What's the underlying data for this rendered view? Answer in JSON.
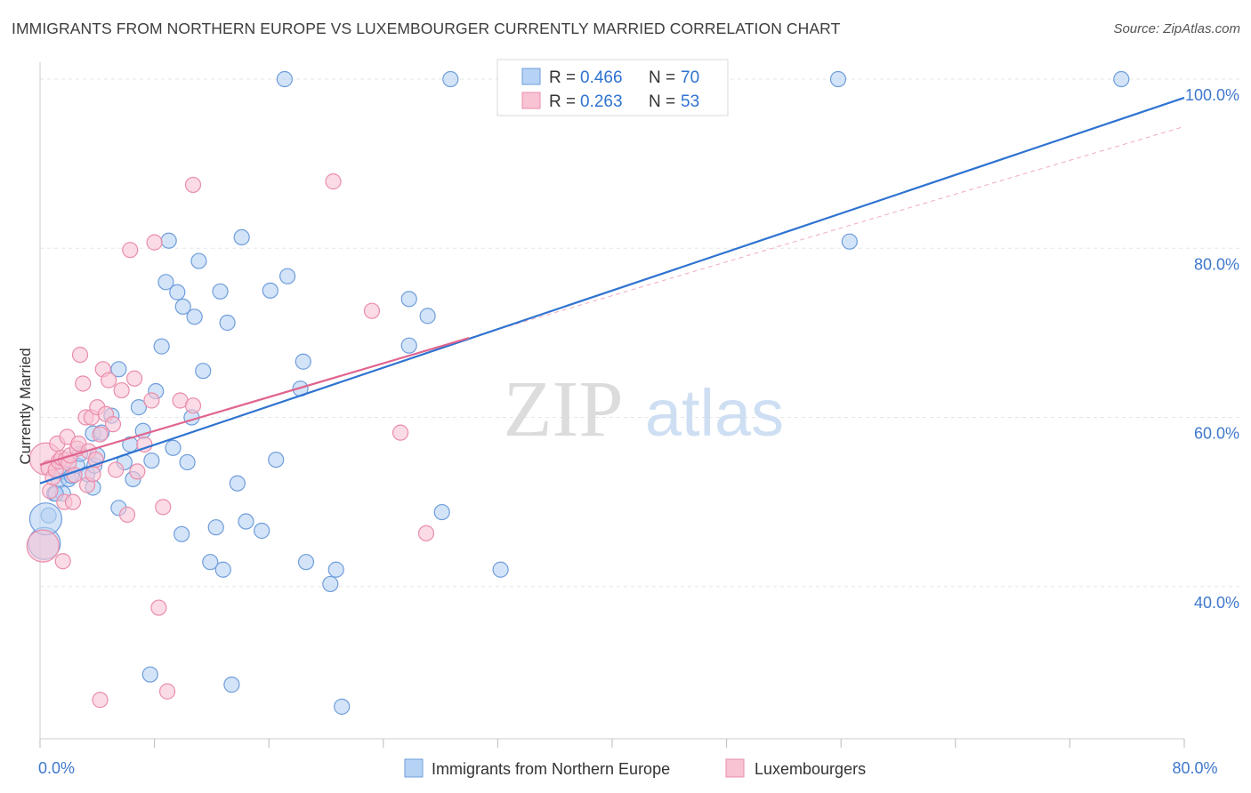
{
  "title": "IMMIGRANTS FROM NORTHERN EUROPE VS LUXEMBOURGER CURRENTLY MARRIED CORRELATION CHART",
  "source": "Source: ZipAtlas.com",
  "watermark": {
    "part1": "ZIP",
    "part2": "atlas"
  },
  "colors": {
    "blue": "#6f9ddb",
    "blue_fill": "#b6d2f4",
    "blue_line": "#2f73d0",
    "pink": "#ea8dab",
    "pink_fill": "#f8c3d3",
    "pink_line": "#e0648e",
    "axis_text": "#3f78cc"
  },
  "legend_box": [
    {
      "r_label": "R =",
      "r_value": "0.466",
      "n_label": "N =",
      "n_value": "70"
    },
    {
      "r_label": "R =",
      "r_value": "0.263",
      "n_label": "N =",
      "n_value": "53"
    }
  ],
  "chart_data": {
    "type": "scatter",
    "title": "IMMIGRANTS FROM NORTHERN EUROPE VS LUXEMBOURGER CURRENTLY MARRIED CORRELATION CHART",
    "xlabel": "",
    "ylabel": "Currently Married",
    "xlim": [
      0,
      80
    ],
    "ylim": [
      22,
      102
    ],
    "x_tick_labels": [
      {
        "value": 0,
        "label": "0.0%"
      },
      {
        "value": 80,
        "label": "80.0%"
      }
    ],
    "y_tick_labels": [
      {
        "value": 40,
        "label": "40.0%"
      },
      {
        "value": 60,
        "label": "60.0%"
      },
      {
        "value": 80,
        "label": "80.0%"
      },
      {
        "value": 100,
        "label": "100.0%"
      }
    ],
    "legend": [
      "Immigrants from Northern Europe",
      "Luxembourgers"
    ],
    "series": [
      {
        "name": "Immigrants from Northern Europe",
        "r": 0.466,
        "n": 70,
        "trend": {
          "x": [
            0,
            80
          ],
          "y": [
            52.2,
            97.8
          ]
        },
        "points": [
          [
            0.3,
            45.1
          ],
          [
            0.6,
            48.4
          ],
          [
            0.4,
            48.0
          ],
          [
            1.0,
            51.0
          ],
          [
            1.3,
            52.5
          ],
          [
            1.6,
            51.0
          ],
          [
            1.5,
            53.6
          ],
          [
            2.0,
            52.7
          ],
          [
            2.2,
            53.1
          ],
          [
            2.6,
            54.3
          ],
          [
            2.8,
            55.7
          ],
          [
            3.3,
            53.3
          ],
          [
            3.8,
            54.3
          ],
          [
            3.7,
            58.1
          ],
          [
            3.7,
            51.7
          ],
          [
            4.0,
            55.5
          ],
          [
            4.3,
            58.2
          ],
          [
            5.0,
            60.2
          ],
          [
            5.5,
            49.3
          ],
          [
            5.5,
            65.7
          ],
          [
            5.9,
            54.7
          ],
          [
            6.3,
            56.8
          ],
          [
            6.5,
            52.7
          ],
          [
            6.9,
            61.2
          ],
          [
            7.2,
            58.4
          ],
          [
            7.8,
            54.9
          ],
          [
            8.1,
            63.1
          ],
          [
            8.5,
            68.4
          ],
          [
            8.8,
            76.0
          ],
          [
            9.0,
            80.9
          ],
          [
            9.3,
            56.4
          ],
          [
            9.6,
            74.8
          ],
          [
            9.9,
            46.2
          ],
          [
            10.0,
            73.1
          ],
          [
            10.3,
            54.7
          ],
          [
            10.6,
            60.0
          ],
          [
            10.8,
            71.9
          ],
          [
            11.1,
            78.5
          ],
          [
            11.4,
            65.5
          ],
          [
            11.9,
            42.9
          ],
          [
            12.3,
            47.0
          ],
          [
            12.6,
            74.9
          ],
          [
            12.8,
            42.0
          ],
          [
            13.1,
            71.2
          ],
          [
            13.8,
            52.2
          ],
          [
            14.1,
            81.3
          ],
          [
            14.4,
            47.7
          ],
          [
            15.5,
            46.6
          ],
          [
            16.1,
            75.0
          ],
          [
            16.5,
            55.0
          ],
          [
            17.3,
            76.7
          ],
          [
            18.2,
            63.4
          ],
          [
            18.4,
            66.6
          ],
          [
            18.6,
            42.9
          ],
          [
            20.3,
            40.3
          ],
          [
            20.7,
            42.0
          ],
          [
            25.8,
            74.0
          ],
          [
            27.1,
            72.0
          ],
          [
            25.8,
            68.5
          ],
          [
            28.1,
            48.8
          ],
          [
            32.2,
            42.0
          ],
          [
            7.7,
            29.6
          ],
          [
            13.4,
            28.4
          ],
          [
            21.1,
            25.8
          ],
          [
            17.1,
            100.0
          ],
          [
            28.7,
            100.0
          ],
          [
            55.8,
            100.0
          ],
          [
            56.6,
            80.8
          ],
          [
            75.6,
            100.0
          ],
          [
            1.1,
            51.0
          ]
        ]
      },
      {
        "name": "Luxembourgers",
        "r": 0.263,
        "n": 53,
        "trend": {
          "x": [
            0,
            30
          ],
          "y": [
            54.4,
            69.4
          ]
        },
        "points": [
          [
            0.2,
            44.8
          ],
          [
            0.4,
            55.1
          ],
          [
            0.6,
            54.0
          ],
          [
            0.7,
            51.3
          ],
          [
            0.9,
            52.9
          ],
          [
            1.1,
            53.8
          ],
          [
            1.2,
            56.9
          ],
          [
            1.3,
            54.8
          ],
          [
            1.5,
            55.2
          ],
          [
            1.6,
            43.0
          ],
          [
            1.7,
            50.0
          ],
          [
            1.8,
            55.0
          ],
          [
            1.9,
            57.7
          ],
          [
            2.0,
            54.6
          ],
          [
            2.1,
            55.5
          ],
          [
            2.3,
            50.0
          ],
          [
            2.4,
            53.2
          ],
          [
            2.6,
            56.3
          ],
          [
            2.7,
            56.9
          ],
          [
            2.8,
            67.4
          ],
          [
            3.0,
            64.0
          ],
          [
            3.2,
            60.0
          ],
          [
            3.3,
            52.0
          ],
          [
            3.4,
            56.0
          ],
          [
            3.6,
            60.0
          ],
          [
            3.7,
            53.3
          ],
          [
            3.9,
            55.0
          ],
          [
            4.0,
            61.2
          ],
          [
            4.2,
            58.0
          ],
          [
            4.4,
            65.7
          ],
          [
            4.6,
            60.4
          ],
          [
            4.8,
            64.4
          ],
          [
            5.1,
            59.2
          ],
          [
            5.3,
            53.8
          ],
          [
            5.7,
            63.2
          ],
          [
            6.1,
            48.5
          ],
          [
            6.3,
            79.8
          ],
          [
            6.6,
            64.6
          ],
          [
            6.8,
            53.6
          ],
          [
            7.3,
            56.8
          ],
          [
            7.8,
            62.0
          ],
          [
            8.0,
            80.7
          ],
          [
            8.3,
            37.5
          ],
          [
            8.6,
            49.4
          ],
          [
            8.9,
            27.6
          ],
          [
            9.8,
            62.0
          ],
          [
            10.7,
            61.4
          ],
          [
            10.7,
            87.5
          ],
          [
            20.5,
            87.9
          ],
          [
            23.2,
            72.6
          ],
          [
            25.2,
            58.2
          ],
          [
            27.0,
            46.3
          ],
          [
            4.2,
            26.6
          ]
        ]
      }
    ],
    "reference_line": {
      "style": "dashed",
      "x": [
        0,
        80
      ],
      "y": [
        54.4,
        94.4
      ]
    }
  }
}
